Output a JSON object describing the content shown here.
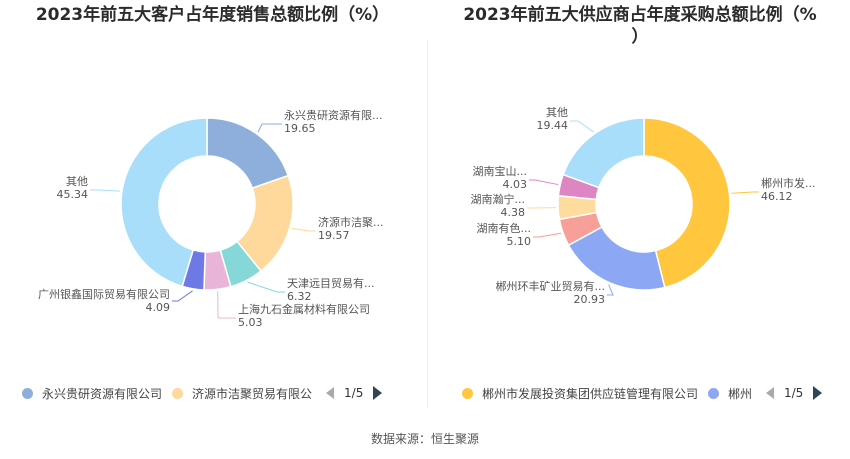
{
  "titles": {
    "left": "2023年前五大客户占年度销售总额比例（%）",
    "right_line1": "2023年前五大供应商占年度采购总额比例（%",
    "right_line2": "）"
  },
  "source": "数据来源：恒生聚源",
  "chart_data": [
    {
      "type": "pie",
      "donut": true,
      "title": "2023年前五大客户占年度销售总额比例（%）",
      "slices": [
        {
          "label": "永兴贵研资源有限...",
          "full_name": "永兴贵研资源有限公司",
          "value": 19.65,
          "color": "#8eaedb"
        },
        {
          "label": "济源市洁聚...",
          "full_name": "济源市洁聚贸易有限公司",
          "value": 19.57,
          "color": "#ffd89b"
        },
        {
          "label": "天津远目贸易有...",
          "value": 6.32,
          "color": "#86d8d8"
        },
        {
          "label": "上海九石金属材料有限公司",
          "value": 5.03,
          "color": "#e8b4d8"
        },
        {
          "label": "广州银鑫国际贸易有限公司",
          "value": 4.09,
          "color": "#6e79e6"
        },
        {
          "label": "其他",
          "value": 45.34,
          "color": "#a9defa"
        }
      ],
      "legend": {
        "position": "bottom",
        "items": [
          {
            "label": "永兴贵研资源有限公司",
            "color": "#8eaedb"
          },
          {
            "label": "济源市洁聚贸易有限公",
            "color": "#ffd89b"
          }
        ],
        "page": "1/5"
      }
    },
    {
      "type": "pie",
      "donut": true,
      "title": "2023年前五大供应商占年度采购总额比例（%）",
      "slices": [
        {
          "label": "郴州市发...",
          "value": 46.12,
          "color": "#ffc63e"
        },
        {
          "label": "郴州环丰矿业贸易有...",
          "value": 20.93,
          "color": "#8ca8f5"
        },
        {
          "label": "湖南有色...",
          "value": 5.1,
          "color": "#f7a09a"
        },
        {
          "label": "湖南瀚宁...",
          "value": 4.38,
          "color": "#ffdb9d"
        },
        {
          "label": "湖南宝山...",
          "value": 4.03,
          "color": "#de86c4"
        },
        {
          "label": "其他",
          "value": 19.44,
          "color": "#a9defa"
        }
      ],
      "legend": {
        "position": "bottom",
        "items": [
          {
            "label": "郴州市发展投资集团供应链管理有限公司",
            "color": "#ffc63e"
          },
          {
            "label": "郴州",
            "color": "#8ca8f5"
          }
        ],
        "page": "1/5"
      }
    }
  ]
}
